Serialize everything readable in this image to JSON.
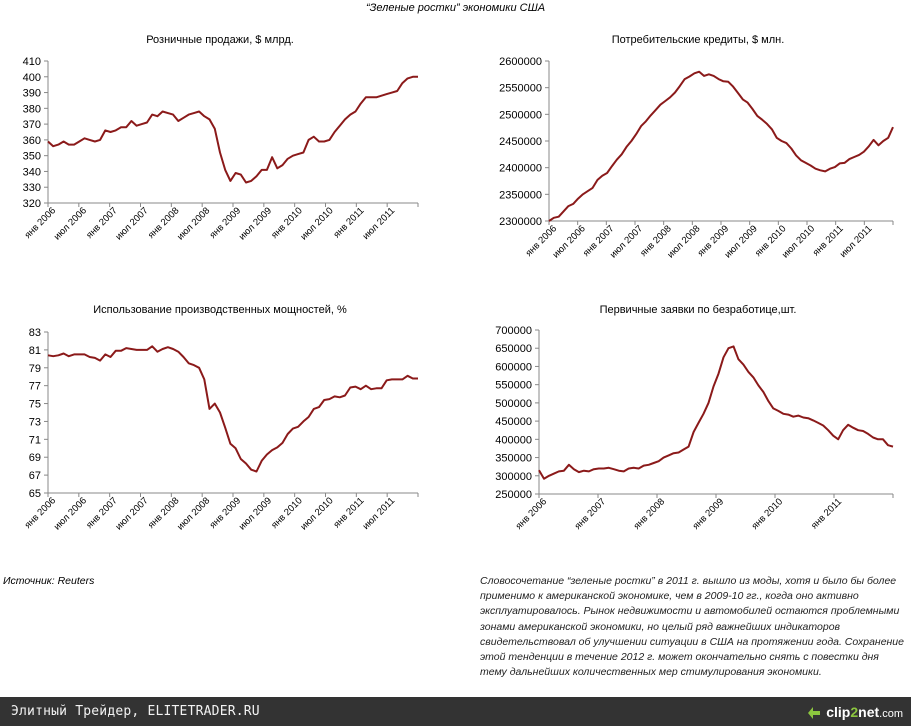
{
  "page_title": "“Зеленые ростки” экономики США",
  "source": "Источник: Reuters",
  "description": "Словосочетание “зеленые ростки” в 2011 г. вышло из моды, хотя и было бы более применимо к  американской экономике, чем в 2009-10 гг., когда оно активно эксплуатировалось. Рынок недвижимости и автомобилей остаются проблемными зонами американской экономики, но целый ряд важнейших индикаторов свидетельствовал об улучшении ситуации в США на протяжении года. Сохранение этой тенденции в течение 2012 г. может окончательно снять  с повестки дня тему дальнейших количественных мер стимулирования экономики.",
  "footer": {
    "left_text": "Элитный Трейдер, ELITETRADER.RU",
    "logo_name": "clip",
    "logo_accent": "2",
    "logo_suffix": "net",
    "logo_domain": ".com"
  },
  "colors": {
    "line": "#8b1a1a",
    "axis": "#888888",
    "footer_bg": "#333333",
    "logo_accent": "#8cc63f"
  },
  "chart_data": [
    {
      "id": "retail",
      "type": "line",
      "title": "Розничные продажи, $ млрд.",
      "ylim": [
        320,
        410
      ],
      "yticks": [
        "410",
        "400",
        "390",
        "380",
        "370",
        "360",
        "350",
        "340",
        "330",
        "320"
      ],
      "xticks": [
        "янв 2006",
        "июл 2006",
        "янв 2007",
        "июл 2007",
        "янв 2008",
        "июл 2008",
        "янв 2009",
        "июл 2009",
        "янв 2010",
        "июл 2010",
        "янв 2011",
        "июл 2011"
      ],
      "x_start": 0,
      "x_end": 71,
      "values": [
        359,
        356,
        357,
        359,
        357,
        357,
        359,
        361,
        360,
        359,
        360,
        366,
        365,
        366,
        368,
        368,
        372,
        369,
        370,
        371,
        376,
        375,
        378,
        377,
        376,
        372,
        374,
        376,
        377,
        378,
        375,
        373,
        367,
        352,
        341,
        334,
        339,
        338,
        333,
        334,
        337,
        341,
        341,
        349,
        342,
        344,
        348,
        350,
        351,
        352,
        360,
        362,
        359,
        359,
        360,
        365,
        369,
        373,
        376,
        378,
        383,
        387,
        387,
        387,
        388,
        389,
        390,
        391,
        396,
        399,
        400,
        400
      ]
    },
    {
      "id": "credit",
      "type": "line",
      "title": "Потребительские кредиты, $ млн.",
      "ylim": [
        2300000,
        2600000
      ],
      "yticks": [
        "2600000",
        "2550000",
        "2500000",
        "2450000",
        "2400000",
        "2350000",
        "2300000"
      ],
      "xticks": [
        "янв 2006",
        "июл 2006",
        "янв 2007",
        "июл 2007",
        "янв 2008",
        "июл 2008",
        "янв 2009",
        "июл 2009",
        "янв 2010",
        "июл 2010",
        "янв 2011",
        "июл 2011"
      ],
      "x_start": 0,
      "x_end": 71,
      "values": [
        2300000,
        2306000,
        2308000,
        2318000,
        2328000,
        2332000,
        2342000,
        2350000,
        2356000,
        2362000,
        2377000,
        2385000,
        2390000,
        2403000,
        2415000,
        2425000,
        2439000,
        2450000,
        2463000,
        2478000,
        2487000,
        2498000,
        2508000,
        2518000,
        2525000,
        2532000,
        2541000,
        2553000,
        2566000,
        2571000,
        2577000,
        2580000,
        2572000,
        2575000,
        2572000,
        2566000,
        2562000,
        2561000,
        2552000,
        2540000,
        2528000,
        2522000,
        2510000,
        2497000,
        2490000,
        2482000,
        2472000,
        2456000,
        2450000,
        2446000,
        2436000,
        2423000,
        2414000,
        2409000,
        2404000,
        2398000,
        2395000,
        2393000,
        2398000,
        2401000,
        2408000,
        2409000,
        2416000,
        2420000,
        2424000,
        2430000,
        2440000,
        2452000,
        2442000,
        2450000,
        2456000,
        2476000
      ]
    },
    {
      "id": "capacity",
      "type": "line",
      "title": "Использование производственных мощностей, %",
      "ylim": [
        65,
        83
      ],
      "yticks": [
        "83",
        "81",
        "79",
        "77",
        "75",
        "73",
        "71",
        "69",
        "67",
        "65"
      ],
      "xticks": [
        "янв 2006",
        "июл 2006",
        "янв 2007",
        "июл 2007",
        "янв 2008",
        "июл 2008",
        "янв 2009",
        "июл 2009",
        "янв 2010",
        "июл 2010",
        "янв 2011",
        "июл 2011"
      ],
      "x_start": 0,
      "x_end": 71,
      "values": [
        80.4,
        80.3,
        80.4,
        80.6,
        80.3,
        80.5,
        80.5,
        80.5,
        80.2,
        80.1,
        79.8,
        80.5,
        80.2,
        80.9,
        80.9,
        81.2,
        81.1,
        81.0,
        81.0,
        81.0,
        81.4,
        80.8,
        81.1,
        81.3,
        81.1,
        80.8,
        80.2,
        79.5,
        79.3,
        79.0,
        77.7,
        74.4,
        75.0,
        74.0,
        72.3,
        70.5,
        70.0,
        68.8,
        68.3,
        67.6,
        67.4,
        68.6,
        69.3,
        69.8,
        70.1,
        70.6,
        71.6,
        72.2,
        72.4,
        73.0,
        73.5,
        74.4,
        74.6,
        75.4,
        75.5,
        75.8,
        75.7,
        75.9,
        76.8,
        76.9,
        76.6,
        77.0,
        76.6,
        76.7,
        76.7,
        77.6,
        77.7,
        77.7,
        77.7,
        78.1,
        77.8,
        77.8
      ]
    },
    {
      "id": "claims",
      "type": "line",
      "title": "Первичные заявки по безработице,шт.",
      "ylim": [
        250000,
        700000
      ],
      "yticks": [
        "700000",
        "650000",
        "600000",
        "550000",
        "500000",
        "450000",
        "400000",
        "350000",
        "300000",
        "250000"
      ],
      "xticks": [
        "янв 2006",
        "янв 2007",
        "янв 2008",
        "янв 2009",
        "янв 2010",
        "янв 2011"
      ],
      "x_start": 0,
      "x_end": 72,
      "values": [
        315000,
        292000,
        300000,
        306000,
        312000,
        314000,
        330000,
        318000,
        310000,
        314000,
        312000,
        318000,
        320000,
        320000,
        322000,
        318000,
        314000,
        312000,
        320000,
        322000,
        320000,
        328000,
        330000,
        335000,
        340000,
        350000,
        356000,
        362000,
        364000,
        372000,
        380000,
        420000,
        445000,
        470000,
        500000,
        545000,
        580000,
        625000,
        650000,
        655000,
        620000,
        605000,
        585000,
        570000,
        548000,
        530000,
        505000,
        485000,
        478000,
        470000,
        468000,
        462000,
        465000,
        460000,
        458000,
        452000,
        445000,
        438000,
        425000,
        410000,
        400000,
        425000,
        440000,
        432000,
        425000,
        423000,
        415000,
        405000,
        400000,
        400000,
        384000,
        380000
      ]
    }
  ]
}
